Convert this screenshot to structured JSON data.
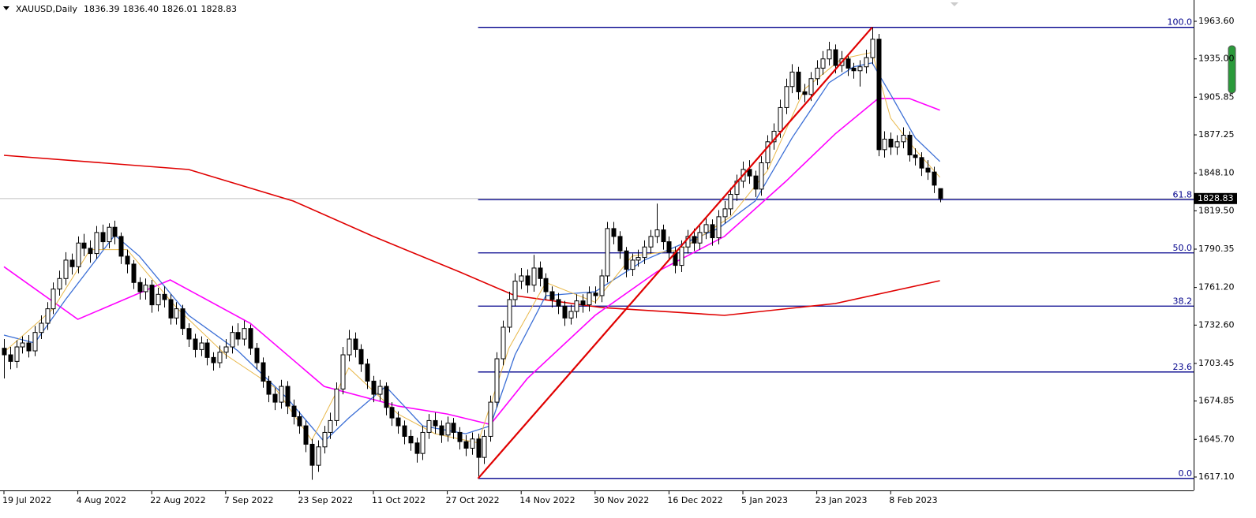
{
  "header": {
    "symbol": "XAUUSD,Daily",
    "ohlc": [
      "1836.39",
      "1836.40",
      "1826.01",
      "1828.83"
    ]
  },
  "chart_data": {
    "type": "candlestick",
    "xlim": [
      -0.64,
      193.2
    ],
    "ylim": [
      1606.9,
      1979.8
    ],
    "xticks": [
      {
        "value": 0,
        "label": "19 Jul 2022"
      },
      {
        "value": 12,
        "label": "4 Aug 2022"
      },
      {
        "value": 24,
        "label": "22 Aug 2022"
      },
      {
        "value": 36,
        "label": "7 Sep 2022"
      },
      {
        "value": 48,
        "label": "23 Sep 2022"
      },
      {
        "value": 60,
        "label": "11 Oct 2022"
      },
      {
        "value": 72,
        "label": "27 Oct 2022"
      },
      {
        "value": 84,
        "label": "14 Nov 2022"
      },
      {
        "value": 96,
        "label": "30 Nov 2022"
      },
      {
        "value": 108,
        "label": "16 Dec 2022"
      },
      {
        "value": 120,
        "label": "5 Jan 2023"
      },
      {
        "value": 132,
        "label": "23 Jan 2023"
      },
      {
        "value": 144,
        "label": "8 Feb 2023"
      }
    ],
    "yticks": [
      {
        "value": 1617.1,
        "label": "1617.10"
      },
      {
        "value": 1645.7,
        "label": "1645.70"
      },
      {
        "value": 1674.85,
        "label": "1674.85"
      },
      {
        "value": 1703.45,
        "label": "1703.45"
      },
      {
        "value": 1732.6,
        "label": "1732.60"
      },
      {
        "value": 1761.2,
        "label": "1761.20"
      },
      {
        "value": 1790.35,
        "label": "1790.35"
      },
      {
        "value": 1819.5,
        "label": "1819.50"
      },
      {
        "value": 1848.1,
        "label": "1848.10"
      },
      {
        "value": 1877.25,
        "label": "1877.25"
      },
      {
        "value": 1905.85,
        "label": "1905.85"
      },
      {
        "value": 1935,
        "label": "1935.00"
      },
      {
        "value": 1963.6,
        "label": "1963.60"
      }
    ],
    "bull_color": "#ffffff",
    "bear_color": "#000000",
    "wick_color": "#000000",
    "open": [
      1715,
      1710,
      1705,
      1716,
      1719,
      1713,
      1727,
      1734,
      1745,
      1760,
      1768,
      1782,
      1777,
      1795,
      1791,
      1787,
      1803,
      1796,
      1807,
      1800,
      1785,
      1779,
      1765,
      1758,
      1763,
      1748,
      1756,
      1752,
      1738,
      1745,
      1730,
      1722,
      1714,
      1719,
      1708,
      1704,
      1712,
      1716,
      1727,
      1722,
      1730,
      1715,
      1704,
      1690,
      1680,
      1674,
      1686,
      1671,
      1663,
      1656,
      1642,
      1626,
      1640,
      1651,
      1660,
      1684,
      1710,
      1722,
      1714,
      1703,
      1690,
      1680,
      1686,
      1670,
      1662,
      1656,
      1648,
      1643,
      1635,
      1651,
      1660,
      1656,
      1649,
      1658,
      1651,
      1644,
      1639,
      1646,
      1632,
      1648,
      1674,
      1707,
      1731,
      1752,
      1766,
      1770,
      1763,
      1776,
      1768,
      1758,
      1752,
      1747,
      1738,
      1743,
      1751,
      1748,
      1757,
      1755,
      1770,
      1806,
      1800,
      1789,
      1775,
      1782,
      1784,
      1792,
      1800,
      1805,
      1796,
      1788,
      1778,
      1792,
      1800,
      1795,
      1803,
      1809,
      1799,
      1815,
      1821,
      1832,
      1842,
      1851,
      1846,
      1836,
      1856,
      1872,
      1880,
      1898,
      1914,
      1925,
      1910,
      1908,
      1920,
      1928,
      1935,
      1942,
      1930,
      1935,
      1928,
      1926,
      1929,
      1936,
      1950,
      1866,
      1874,
      1868,
      1872,
      1877,
      1862,
      1860,
      1852,
      1849,
      1836.39
    ],
    "high": [
      1722,
      1716,
      1721,
      1724,
      1725,
      1732,
      1740,
      1750,
      1765,
      1774,
      1788,
      1787,
      1800,
      1802,
      1797,
      1808,
      1809,
      1810,
      1812,
      1803,
      1790,
      1782,
      1769,
      1768,
      1767,
      1761,
      1762,
      1756,
      1750,
      1748,
      1734,
      1726,
      1724,
      1722,
      1712,
      1717,
      1722,
      1732,
      1734,
      1736,
      1733,
      1719,
      1708,
      1694,
      1685,
      1691,
      1690,
      1676,
      1667,
      1660,
      1646,
      1645,
      1656,
      1666,
      1689,
      1716,
      1729,
      1727,
      1718,
      1707,
      1694,
      1691,
      1689,
      1674,
      1667,
      1660,
      1653,
      1647,
      1656,
      1665,
      1666,
      1660,
      1663,
      1662,
      1655,
      1649,
      1651,
      1650,
      1653,
      1679,
      1712,
      1736,
      1758,
      1772,
      1776,
      1775,
      1786,
      1781,
      1772,
      1762,
      1757,
      1751,
      1748,
      1756,
      1756,
      1762,
      1762,
      1775,
      1811,
      1811,
      1804,
      1792,
      1787,
      1790,
      1797,
      1805,
      1825,
      1809,
      1800,
      1792,
      1797,
      1805,
      1806,
      1808,
      1815,
      1813,
      1820,
      1827,
      1837,
      1847,
      1857,
      1858,
      1850,
      1861,
      1877,
      1886,
      1904,
      1920,
      1931,
      1929,
      1916,
      1925,
      1934,
      1941,
      1948,
      1946,
      1941,
      1939,
      1932,
      1934,
      1942,
      1959,
      1954,
      1880,
      1879,
      1877,
      1883,
      1880,
      1867,
      1864,
      1858,
      1853,
      1836.4
    ],
    "low": [
      1692,
      1699,
      1700,
      1711,
      1708,
      1709,
      1722,
      1729,
      1741,
      1755,
      1763,
      1771,
      1772,
      1785,
      1780,
      1783,
      1790,
      1791,
      1794,
      1779,
      1772,
      1760,
      1752,
      1752,
      1742,
      1743,
      1746,
      1733,
      1733,
      1725,
      1716,
      1708,
      1709,
      1702,
      1698,
      1700,
      1707,
      1711,
      1717,
      1717,
      1710,
      1699,
      1685,
      1674,
      1668,
      1669,
      1665,
      1657,
      1650,
      1636,
      1615,
      1621,
      1635,
      1646,
      1656,
      1680,
      1705,
      1708,
      1697,
      1684,
      1674,
      1675,
      1664,
      1656,
      1650,
      1642,
      1637,
      1628,
      1630,
      1646,
      1650,
      1643,
      1644,
      1646,
      1638,
      1633,
      1634,
      1616,
      1627,
      1644,
      1670,
      1702,
      1727,
      1747,
      1760,
      1757,
      1758,
      1762,
      1752,
      1746,
      1741,
      1732,
      1733,
      1738,
      1742,
      1743,
      1749,
      1750,
      1765,
      1794,
      1783,
      1769,
      1770,
      1777,
      1779,
      1787,
      1795,
      1790,
      1782,
      1772,
      1773,
      1787,
      1789,
      1790,
      1798,
      1793,
      1794,
      1810,
      1816,
      1827,
      1837,
      1840,
      1830,
      1831,
      1851,
      1866,
      1875,
      1893,
      1909,
      1904,
      1902,
      1903,
      1915,
      1923,
      1930,
      1924,
      1925,
      1922,
      1920,
      1914,
      1924,
      1931,
      1861,
      1860,
      1862,
      1862,
      1867,
      1857,
      1854,
      1846,
      1843,
      1833,
      1826.01
    ],
    "close": [
      1710,
      1705,
      1716,
      1719,
      1713,
      1727,
      1734,
      1745,
      1760,
      1768,
      1782,
      1777,
      1795,
      1791,
      1787,
      1803,
      1796,
      1807,
      1800,
      1785,
      1779,
      1765,
      1758,
      1763,
      1748,
      1756,
      1752,
      1738,
      1745,
      1730,
      1722,
      1714,
      1719,
      1708,
      1704,
      1712,
      1716,
      1727,
      1722,
      1730,
      1715,
      1704,
      1690,
      1680,
      1674,
      1686,
      1671,
      1663,
      1656,
      1642,
      1626,
      1640,
      1651,
      1660,
      1684,
      1710,
      1722,
      1714,
      1703,
      1690,
      1680,
      1686,
      1670,
      1662,
      1656,
      1648,
      1643,
      1635,
      1651,
      1660,
      1656,
      1649,
      1658,
      1651,
      1644,
      1639,
      1646,
      1632,
      1648,
      1674,
      1707,
      1731,
      1752,
      1766,
      1770,
      1763,
      1776,
      1768,
      1758,
      1752,
      1747,
      1738,
      1743,
      1751,
      1748,
      1757,
      1755,
      1770,
      1806,
      1800,
      1789,
      1775,
      1782,
      1784,
      1792,
      1800,
      1805,
      1796,
      1788,
      1778,
      1792,
      1800,
      1795,
      1803,
      1809,
      1799,
      1815,
      1821,
      1832,
      1842,
      1851,
      1846,
      1836,
      1856,
      1872,
      1880,
      1898,
      1914,
      1925,
      1910,
      1908,
      1920,
      1928,
      1935,
      1942,
      1930,
      1935,
      1928,
      1926,
      1929,
      1936,
      1950,
      1866,
      1874,
      1868,
      1872,
      1877,
      1862,
      1860,
      1852,
      1849,
      1839,
      1828.83
    ],
    "lines": [
      {
        "color": "#e00000",
        "width": 1.6,
        "x": [
          0,
          30,
          47,
          60,
          74,
          83,
          97,
          117,
          135,
          152
        ],
        "values": [
          1861.7,
          1850.9,
          1826.9,
          1800,
          1773,
          1755,
          1746,
          1740,
          1749,
          1766.4
        ]
      },
      {
        "color": "#ff00ff",
        "width": 1.6,
        "x": [
          0,
          12,
          27,
          40,
          52,
          64,
          72,
          79,
          85,
          96,
          106,
          117,
          127,
          135,
          142,
          147,
          152
        ],
        "values": [
          1777,
          1737,
          1767,
          1734,
          1686,
          1671,
          1665,
          1657,
          1692,
          1740,
          1773,
          1800,
          1842,
          1878,
          1905,
          1905,
          1896
        ]
      },
      {
        "color": "#3c6fd6",
        "width": 1.3,
        "x": [
          0,
          5,
          10,
          18,
          22,
          30,
          38,
          46,
          52,
          56,
          62,
          68,
          75,
          79,
          83,
          88,
          96,
          104,
          110,
          116,
          122,
          128,
          134,
          138,
          141,
          144,
          148,
          152
        ],
        "values": [
          1725,
          1719,
          1752,
          1801,
          1785,
          1740,
          1713,
          1677,
          1644,
          1662,
          1686,
          1656,
          1650,
          1656,
          1710,
          1755,
          1758,
          1782,
          1794,
          1806,
          1827,
          1875,
          1917,
          1929,
          1932,
          1908,
          1875,
          1857
        ]
      },
      {
        "color": "#e8b84a",
        "width": 1,
        "x": [
          0,
          8,
          14,
          20,
          28,
          36,
          44,
          50,
          56,
          64,
          70,
          77,
          82,
          88,
          96,
          102,
          110,
          118,
          124,
          130,
          136,
          141,
          144,
          148,
          152
        ],
        "values": [
          1712,
          1745,
          1790,
          1790,
          1746,
          1710,
          1685,
          1645,
          1700,
          1665,
          1650,
          1643,
          1715,
          1765,
          1750,
          1785,
          1790,
          1815,
          1850,
          1912,
          1935,
          1940,
          1890,
          1866,
          1845
        ]
      }
    ],
    "trend_line": {
      "color": "#e00000",
      "x": [
        77,
        141
      ],
      "values": [
        1616,
        1959
      ]
    },
    "fibonacci": {
      "color": "#00008b",
      "x_start": 77,
      "levels": [
        {
          "label": "100.0",
          "price": 1959
        },
        {
          "label": "61.8",
          "price": 1827.97
        },
        {
          "label": "50.0",
          "price": 1787.5
        },
        {
          "label": "38.2",
          "price": 1747.03
        },
        {
          "label": "23.6",
          "price": 1696.95
        },
        {
          "label": "0.0",
          "price": 1616
        }
      ]
    }
  }
}
